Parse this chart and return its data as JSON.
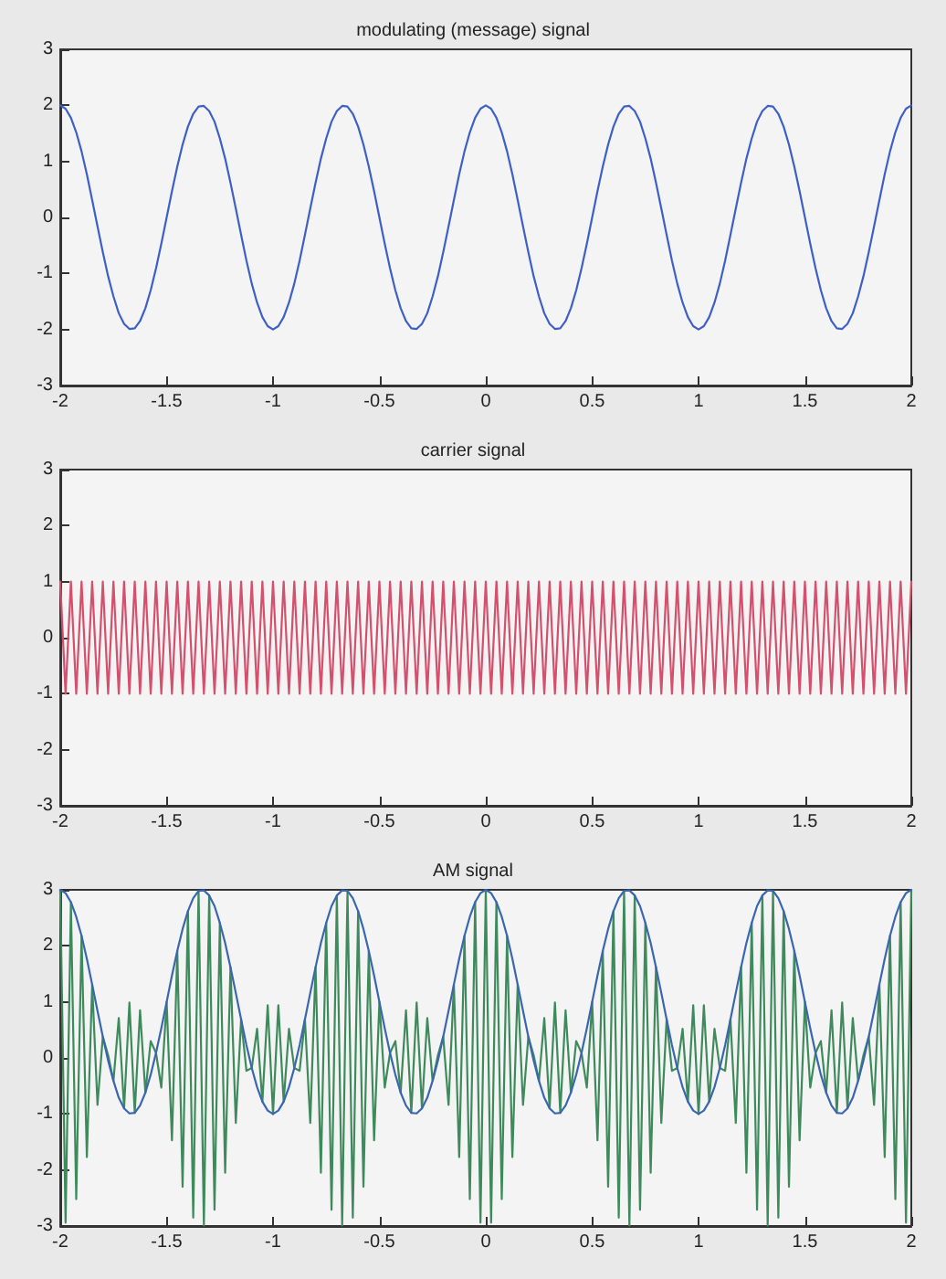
{
  "chart_data": [
    {
      "type": "line",
      "title": "modulating (message) signal",
      "marker": "none",
      "xlim": [
        -2,
        2
      ],
      "ylim": [
        -3,
        3
      ],
      "xticks": [
        -2,
        -1.5,
        -1,
        -0.5,
        0,
        0.5,
        1,
        1.5,
        2
      ],
      "yticks": [
        -3,
        -2,
        -1,
        0,
        1,
        2,
        3
      ],
      "x": [
        -2,
        -1.975,
        -1.95,
        -1.925,
        -1.9,
        -1.875,
        -1.85,
        -1.825,
        -1.8,
        -1.775,
        -1.75,
        -1.725,
        -1.7,
        -1.675,
        -1.65,
        -1.625,
        -1.6,
        -1.575,
        -1.55,
        -1.525,
        -1.5,
        -1.475,
        -1.45,
        -1.425,
        -1.4,
        -1.375,
        -1.35,
        -1.325,
        -1.3,
        -1.275,
        -1.25,
        -1.225,
        -1.2,
        -1.175,
        -1.15,
        -1.125,
        -1.1,
        -1.075,
        -1.05,
        -1.025,
        -1,
        -0.975,
        -0.95,
        -0.925,
        -0.9,
        -0.875,
        -0.85,
        -0.825,
        -0.8,
        -0.775,
        -0.75,
        -0.725,
        -0.7,
        -0.675,
        -0.65,
        -0.625,
        -0.6,
        -0.575,
        -0.55,
        -0.525,
        -0.5,
        -0.475,
        -0.45,
        -0.425,
        -0.4,
        -0.375,
        -0.35,
        -0.325,
        -0.3,
        -0.275,
        -0.25,
        -0.225,
        -0.2,
        -0.175,
        -0.15,
        -0.125,
        -0.1,
        -0.075,
        -0.05,
        -0.025,
        0,
        0.025,
        0.05,
        0.075,
        0.1,
        0.125,
        0.15,
        0.175,
        0.2,
        0.225,
        0.25,
        0.275,
        0.3,
        0.325,
        0.35,
        0.375,
        0.4,
        0.425,
        0.45,
        0.475,
        0.5,
        0.525,
        0.55,
        0.575,
        0.6,
        0.625,
        0.65,
        0.675,
        0.7,
        0.725,
        0.75,
        0.775,
        0.8,
        0.825,
        0.85,
        0.875,
        0.9,
        0.925,
        0.95,
        0.975,
        1,
        1.025,
        1.05,
        1.075,
        1.1,
        1.125,
        1.15,
        1.175,
        1.2,
        1.225,
        1.25,
        1.275,
        1.3,
        1.325,
        1.35,
        1.375,
        1.4,
        1.425,
        1.45,
        1.475,
        1.5,
        1.525,
        1.55,
        1.575,
        1.6,
        1.625,
        1.65,
        1.675,
        1.7,
        1.725,
        1.75,
        1.775,
        1.8,
        1.825,
        1.85,
        1.875,
        1.9,
        1.925,
        1.95,
        1.975,
        2
      ],
      "series": [
        {
          "color": "#3f5fc8",
          "values": [
            2,
            1.94,
            1.78,
            1.52,
            1.18,
            0.77,
            0.31,
            -0.16,
            -0.62,
            -1.05,
            -1.41,
            -1.71,
            -1.9,
            -1.99,
            -1.98,
            -1.85,
            -1.62,
            -1.3,
            -0.91,
            -0.47,
            0,
            0.47,
            0.91,
            1.3,
            1.62,
            1.85,
            1.98,
            1.99,
            1.9,
            1.71,
            1.41,
            1.05,
            0.62,
            0.16,
            -0.31,
            -0.77,
            -1.18,
            -1.52,
            -1.78,
            -1.94,
            -2,
            -1.94,
            -1.78,
            -1.52,
            -1.18,
            -0.77,
            -0.31,
            0.16,
            0.62,
            1.05,
            1.41,
            1.71,
            1.9,
            1.99,
            1.98,
            1.85,
            1.62,
            1.3,
            0.91,
            0.47,
            0,
            -0.47,
            -0.91,
            -1.3,
            -1.62,
            -1.85,
            -1.98,
            -1.99,
            -1.9,
            -1.71,
            -1.41,
            -1.05,
            -0.62,
            -0.16,
            0.31,
            0.77,
            1.18,
            1.52,
            1.78,
            1.94,
            2,
            1.94,
            1.78,
            1.52,
            1.18,
            0.77,
            0.31,
            -0.16,
            -0.62,
            -1.05,
            -1.41,
            -1.71,
            -1.9,
            -1.99,
            -1.98,
            -1.85,
            -1.62,
            -1.3,
            -0.91,
            -0.47,
            0,
            0.47,
            0.91,
            1.3,
            1.62,
            1.85,
            1.98,
            1.99,
            1.9,
            1.71,
            1.41,
            1.05,
            0.62,
            0.16,
            -0.31,
            -0.77,
            -1.18,
            -1.52,
            -1.78,
            -1.94,
            -2,
            -1.94,
            -1.78,
            -1.52,
            -1.18,
            -0.77,
            -0.31,
            0.16,
            0.62,
            1.05,
            1.41,
            1.71,
            1.9,
            1.99,
            1.98,
            1.85,
            1.62,
            1.3,
            0.91,
            0.47,
            0,
            -0.47,
            -0.91,
            -1.3,
            -1.62,
            -1.85,
            -1.98,
            -1.99,
            -1.9,
            -1.71,
            -1.41,
            -1.05,
            -0.62,
            -0.16,
            0.31,
            0.77,
            1.18,
            1.52,
            1.78,
            1.94,
            2
          ]
        }
      ]
    },
    {
      "type": "line",
      "title": "carrier signal",
      "marker": "none",
      "xlim": [
        -2,
        2
      ],
      "ylim": [
        -3,
        3
      ],
      "xticks": [
        -2,
        -1.5,
        -1,
        -0.5,
        0,
        0.5,
        1,
        1.5,
        2
      ],
      "yticks": [
        -3,
        -2,
        -1,
        0,
        1,
        2,
        3
      ],
      "x": [
        -2,
        -1.975,
        -1.95,
        -1.925,
        -1.9,
        -1.875,
        -1.85,
        -1.825,
        -1.8,
        -1.775,
        -1.75,
        -1.725,
        -1.7,
        -1.675,
        -1.65,
        -1.625,
        -1.6,
        -1.575,
        -1.55,
        -1.525,
        -1.5,
        -1.475,
        -1.45,
        -1.425,
        -1.4,
        -1.375,
        -1.35,
        -1.325,
        -1.3,
        -1.275,
        -1.25,
        -1.225,
        -1.2,
        -1.175,
        -1.15,
        -1.125,
        -1.1,
        -1.075,
        -1.05,
        -1.025,
        -1,
        -0.975,
        -0.95,
        -0.925,
        -0.9,
        -0.875,
        -0.85,
        -0.825,
        -0.8,
        -0.775,
        -0.75,
        -0.725,
        -0.7,
        -0.675,
        -0.65,
        -0.625,
        -0.6,
        -0.575,
        -0.55,
        -0.525,
        -0.5,
        -0.475,
        -0.45,
        -0.425,
        -0.4,
        -0.375,
        -0.35,
        -0.325,
        -0.3,
        -0.275,
        -0.25,
        -0.225,
        -0.2,
        -0.175,
        -0.15,
        -0.125,
        -0.1,
        -0.075,
        -0.05,
        -0.025,
        0,
        0.025,
        0.05,
        0.075,
        0.1,
        0.125,
        0.15,
        0.175,
        0.2,
        0.225,
        0.25,
        0.275,
        0.3,
        0.325,
        0.35,
        0.375,
        0.4,
        0.425,
        0.45,
        0.475,
        0.5,
        0.525,
        0.55,
        0.575,
        0.6,
        0.625,
        0.65,
        0.675,
        0.7,
        0.725,
        0.75,
        0.775,
        0.8,
        0.825,
        0.85,
        0.875,
        0.9,
        0.925,
        0.95,
        0.975,
        1,
        1.025,
        1.05,
        1.075,
        1.1,
        1.125,
        1.15,
        1.175,
        1.2,
        1.225,
        1.25,
        1.275,
        1.3,
        1.325,
        1.35,
        1.375,
        1.4,
        1.425,
        1.45,
        1.475,
        1.5,
        1.525,
        1.55,
        1.575,
        1.6,
        1.625,
        1.65,
        1.675,
        1.7,
        1.725,
        1.75,
        1.775,
        1.8,
        1.825,
        1.85,
        1.875,
        1.9,
        1.925,
        1.95,
        1.975,
        2
      ],
      "series": [
        {
          "color": "#d4506c",
          "values": [
            1,
            -1,
            1,
            -1,
            1,
            -1,
            1,
            -1,
            1,
            -1,
            1,
            -1,
            1,
            -1,
            1,
            -1,
            1,
            -1,
            1,
            -1,
            1,
            -1,
            1,
            -1,
            1,
            -1,
            1,
            -1,
            1,
            -1,
            1,
            -1,
            1,
            -1,
            1,
            -1,
            1,
            -1,
            1,
            -1,
            1,
            -1,
            1,
            -1,
            1,
            -1,
            1,
            -1,
            1,
            -1,
            1,
            -1,
            1,
            -1,
            1,
            -1,
            1,
            -1,
            1,
            -1,
            1,
            -1,
            1,
            -1,
            1,
            -1,
            1,
            -1,
            1,
            -1,
            1,
            -1,
            1,
            -1,
            1,
            -1,
            1,
            -1,
            1,
            -1,
            1,
            -1,
            1,
            -1,
            1,
            -1,
            1,
            -1,
            1,
            -1,
            1,
            -1,
            1,
            -1,
            1,
            -1,
            1,
            -1,
            1,
            -1,
            1,
            -1,
            1,
            -1,
            1,
            -1,
            1,
            -1,
            1,
            -1,
            1,
            -1,
            1,
            -1,
            1,
            -1,
            1,
            -1,
            1,
            -1,
            1,
            -1,
            1,
            -1,
            1,
            -1,
            1,
            -1,
            1,
            -1,
            1,
            -1,
            1,
            -1,
            1,
            -1,
            1,
            -1,
            1,
            -1,
            1,
            -1,
            1,
            -1,
            1,
            -1,
            1,
            -1,
            1,
            -1,
            1,
            -1,
            1,
            -1,
            1,
            -1,
            1,
            -1,
            1,
            -1,
            1
          ]
        }
      ]
    },
    {
      "type": "line",
      "title": "AM signal",
      "marker": "none",
      "xlim": [
        -2,
        2
      ],
      "ylim": [
        -3,
        3
      ],
      "xticks": [
        -2,
        -1.5,
        -1,
        -0.5,
        0,
        0.5,
        1,
        1.5,
        2
      ],
      "yticks": [
        -3,
        -2,
        -1,
        0,
        1,
        2,
        3
      ],
      "x": [
        -2,
        -1.975,
        -1.95,
        -1.925,
        -1.9,
        -1.875,
        -1.85,
        -1.825,
        -1.8,
        -1.775,
        -1.75,
        -1.725,
        -1.7,
        -1.675,
        -1.65,
        -1.625,
        -1.6,
        -1.575,
        -1.55,
        -1.525,
        -1.5,
        -1.475,
        -1.45,
        -1.425,
        -1.4,
        -1.375,
        -1.35,
        -1.325,
        -1.3,
        -1.275,
        -1.25,
        -1.225,
        -1.2,
        -1.175,
        -1.15,
        -1.125,
        -1.1,
        -1.075,
        -1.05,
        -1.025,
        -1,
        -0.975,
        -0.95,
        -0.925,
        -0.9,
        -0.875,
        -0.85,
        -0.825,
        -0.8,
        -0.775,
        -0.75,
        -0.725,
        -0.7,
        -0.675,
        -0.65,
        -0.625,
        -0.6,
        -0.575,
        -0.55,
        -0.525,
        -0.5,
        -0.475,
        -0.45,
        -0.425,
        -0.4,
        -0.375,
        -0.35,
        -0.325,
        -0.3,
        -0.275,
        -0.25,
        -0.225,
        -0.2,
        -0.175,
        -0.15,
        -0.125,
        -0.1,
        -0.075,
        -0.05,
        -0.025,
        0,
        0.025,
        0.05,
        0.075,
        0.1,
        0.125,
        0.15,
        0.175,
        0.2,
        0.225,
        0.25,
        0.275,
        0.3,
        0.325,
        0.35,
        0.375,
        0.4,
        0.425,
        0.45,
        0.475,
        0.5,
        0.525,
        0.55,
        0.575,
        0.6,
        0.625,
        0.65,
        0.675,
        0.7,
        0.725,
        0.75,
        0.775,
        0.8,
        0.825,
        0.85,
        0.875,
        0.9,
        0.925,
        0.95,
        0.975,
        1,
        1.025,
        1.05,
        1.075,
        1.1,
        1.125,
        1.15,
        1.175,
        1.2,
        1.225,
        1.25,
        1.275,
        1.3,
        1.325,
        1.35,
        1.375,
        1.4,
        1.425,
        1.45,
        1.475,
        1.5,
        1.525,
        1.55,
        1.575,
        1.6,
        1.625,
        1.65,
        1.675,
        1.7,
        1.725,
        1.75,
        1.775,
        1.8,
        1.825,
        1.85,
        1.875,
        1.9,
        1.925,
        1.95,
        1.975,
        2
      ],
      "series": [
        {
          "color": "#3f8a5c",
          "values": [
            3,
            -2.94,
            2.78,
            -2.52,
            2.18,
            -1.77,
            1.31,
            -0.84,
            0.38,
            0.05,
            -0.41,
            0.71,
            -0.9,
            0.99,
            -0.98,
            0.85,
            -0.62,
            0.3,
            0.09,
            -0.53,
            1,
            -1.47,
            1.91,
            -2.3,
            2.62,
            -2.85,
            2.98,
            -2.99,
            2.9,
            -2.71,
            2.41,
            -2.05,
            1.62,
            -1.16,
            0.69,
            -0.23,
            -0.18,
            0.52,
            -0.78,
            0.94,
            -1,
            0.94,
            -0.78,
            0.52,
            -0.18,
            -0.23,
            0.69,
            -1.16,
            1.62,
            -2.05,
            2.41,
            -2.71,
            2.9,
            -2.99,
            2.98,
            -2.85,
            2.62,
            -2.3,
            1.91,
            -1.47,
            1,
            -0.53,
            0.09,
            0.3,
            -0.62,
            0.85,
            -0.98,
            0.99,
            -0.9,
            0.71,
            -0.41,
            0.05,
            0.38,
            -0.84,
            1.31,
            -1.77,
            2.18,
            -2.52,
            2.78,
            -2.94,
            3,
            -2.94,
            2.78,
            -2.52,
            2.18,
            -1.77,
            1.31,
            -0.84,
            0.38,
            0.05,
            -0.41,
            0.71,
            -0.9,
            0.99,
            -0.98,
            0.85,
            -0.62,
            0.3,
            0.09,
            -0.53,
            1,
            -1.47,
            1.91,
            -2.3,
            2.62,
            -2.85,
            2.98,
            -2.99,
            2.9,
            -2.71,
            2.41,
            -2.05,
            1.62,
            -1.16,
            0.69,
            -0.23,
            -0.18,
            0.52,
            -0.78,
            0.94,
            -1,
            0.94,
            -0.78,
            0.52,
            -0.18,
            -0.23,
            0.69,
            -1.16,
            1.62,
            -2.05,
            2.41,
            -2.71,
            2.9,
            -2.99,
            2.98,
            -2.85,
            2.62,
            -2.3,
            1.91,
            -1.47,
            1,
            -0.53,
            0.09,
            0.3,
            -0.62,
            0.85,
            -0.98,
            0.99,
            -0.9,
            0.71,
            -0.41,
            0.05,
            0.38,
            -0.84,
            1.31,
            -1.77,
            2.18,
            -2.52,
            2.78,
            -2.94,
            3
          ]
        },
        {
          "color": "#3a66b0",
          "values": [
            3,
            2.94,
            2.78,
            2.52,
            2.18,
            1.77,
            1.31,
            0.84,
            0.38,
            -0.05,
            -0.41,
            -0.71,
            -0.9,
            -0.99,
            -0.98,
            -0.85,
            -0.62,
            -0.3,
            0.09,
            0.53,
            1,
            1.47,
            1.91,
            2.3,
            2.62,
            2.85,
            2.98,
            2.99,
            2.9,
            2.71,
            2.41,
            2.05,
            1.62,
            1.16,
            0.69,
            0.23,
            -0.18,
            -0.52,
            -0.78,
            -0.94,
            -1,
            -0.94,
            -0.78,
            -0.52,
            -0.18,
            0.23,
            0.69,
            1.16,
            1.62,
            2.05,
            2.41,
            2.71,
            2.9,
            2.99,
            2.98,
            2.85,
            2.62,
            2.3,
            1.91,
            1.47,
            1,
            0.53,
            0.09,
            -0.3,
            -0.62,
            -0.85,
            -0.98,
            -0.99,
            -0.9,
            -0.71,
            -0.41,
            -0.05,
            0.38,
            0.84,
            1.31,
            1.77,
            2.18,
            2.52,
            2.78,
            2.94,
            3,
            2.94,
            2.78,
            2.52,
            2.18,
            1.77,
            1.31,
            0.84,
            0.38,
            -0.05,
            -0.41,
            -0.71,
            -0.9,
            -0.99,
            -0.98,
            -0.85,
            -0.62,
            -0.3,
            0.09,
            0.53,
            1,
            1.47,
            1.91,
            2.3,
            2.62,
            2.85,
            2.98,
            2.99,
            2.9,
            2.71,
            2.41,
            2.05,
            1.62,
            1.16,
            0.69,
            0.23,
            -0.18,
            -0.52,
            -0.78,
            -0.94,
            -1,
            -0.94,
            -0.78,
            -0.52,
            -0.18,
            0.23,
            0.69,
            1.16,
            1.62,
            2.05,
            2.41,
            2.71,
            2.9,
            2.99,
            2.98,
            2.85,
            2.62,
            2.3,
            1.91,
            1.47,
            1,
            0.53,
            0.09,
            -0.3,
            -0.62,
            -0.85,
            -0.98,
            -0.99,
            -0.9,
            -0.71,
            -0.41,
            -0.05,
            0.38,
            0.84,
            1.31,
            1.77,
            2.18,
            2.52,
            2.78,
            2.94,
            3
          ]
        }
      ]
    }
  ]
}
